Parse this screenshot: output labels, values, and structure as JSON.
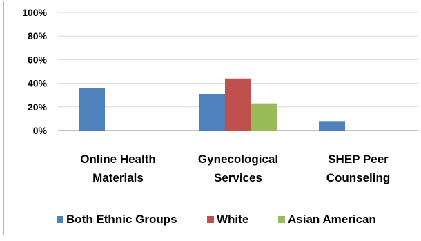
{
  "chart_data": {
    "type": "bar",
    "categories": [
      [
        "Online Health",
        "Materials"
      ],
      [
        "Gynecological",
        "Services"
      ],
      [
        "SHEP Peer",
        "Counseling"
      ]
    ],
    "series": [
      {
        "name": "Both Ethnic Groups",
        "color": "#4f81bd",
        "values": [
          36,
          31,
          8
        ]
      },
      {
        "name": "White",
        "color": "#c0504d",
        "values": [
          null,
          44,
          null
        ]
      },
      {
        "name": "Asian American",
        "color": "#9bbb59",
        "values": [
          null,
          23,
          null
        ]
      }
    ],
    "ylim": [
      0,
      100
    ],
    "yticks": [
      "0%",
      "20%",
      "40%",
      "60%",
      "80%",
      "100%"
    ],
    "grid": true,
    "legend_position": "bottom"
  }
}
